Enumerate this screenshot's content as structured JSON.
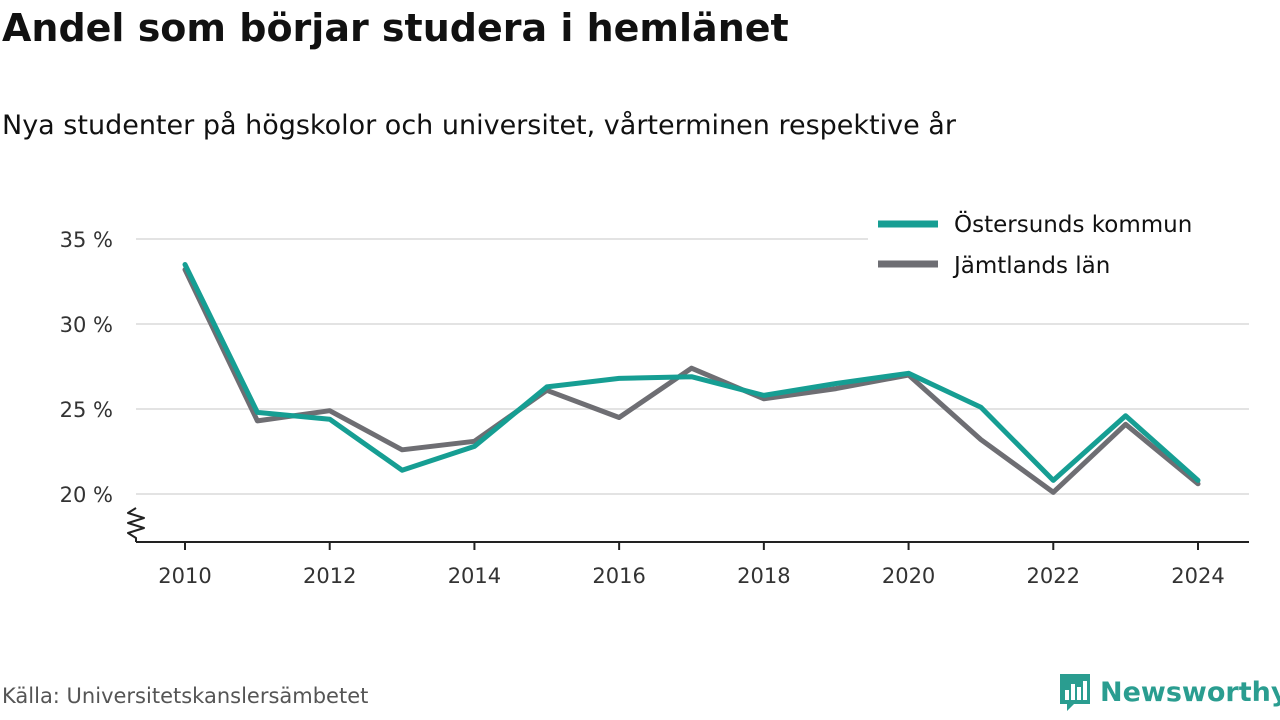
{
  "title": "Andel som börjar studera i hemlänet",
  "subtitle": "Nya studenter på högskolor och universitet, vårterminen respektive år",
  "source": "Källa: Universitetskanslersämbetet",
  "brand": "Newsworthy",
  "colors": {
    "series_1": "#169e93",
    "series_2": "#6e6e73",
    "grid": "#e3e3e3",
    "axis": "#222222",
    "brand": "#2a9d90"
  },
  "chart_data": {
    "type": "line",
    "x": [
      2010,
      2011,
      2012,
      2013,
      2014,
      2015,
      2016,
      2017,
      2018,
      2019,
      2020,
      2021,
      2022,
      2023,
      2024
    ],
    "x_ticks": [
      "2010",
      "2012",
      "2014",
      "2016",
      "2018",
      "2020",
      "2022",
      "2024"
    ],
    "y_ticks": [
      "20 %",
      "25 %",
      "30 %",
      "35 %"
    ],
    "ylim": [
      20,
      35
    ],
    "grid": true,
    "y_axis_break": true,
    "legend_position": "top-right",
    "series": [
      {
        "name": "Östersunds kommun",
        "values": [
          33.5,
          24.8,
          24.4,
          21.4,
          22.8,
          26.3,
          26.8,
          26.9,
          25.8,
          26.5,
          27.1,
          25.1,
          20.8,
          24.6,
          20.8
        ]
      },
      {
        "name": "Jämtlands län",
        "values": [
          33.2,
          24.3,
          24.9,
          22.6,
          23.1,
          26.1,
          24.5,
          27.4,
          25.6,
          26.2,
          27.0,
          23.2,
          20.1,
          24.1,
          20.6
        ]
      }
    ]
  }
}
